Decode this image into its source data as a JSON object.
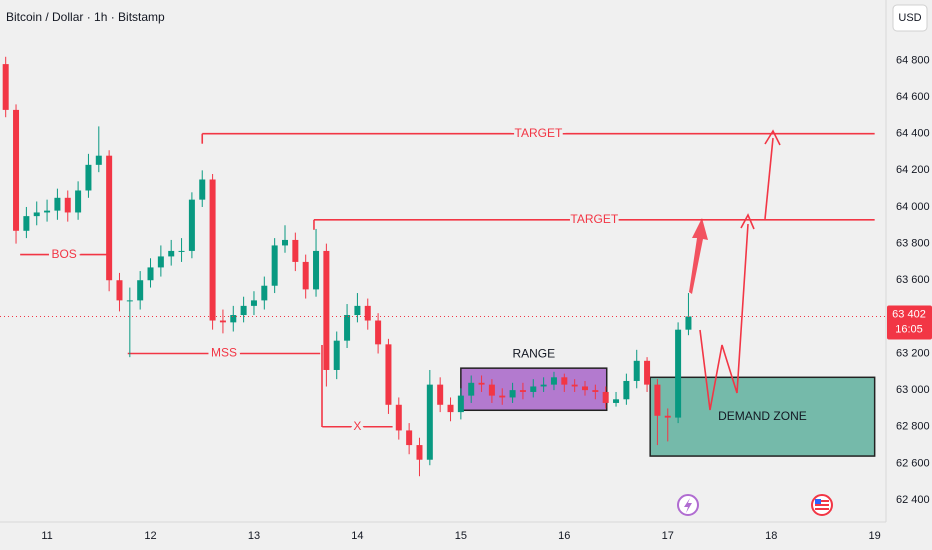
{
  "chart_data": {
    "type": "candlestick",
    "title": "Bitcoin / Dollar · 1h · Bitstamp",
    "currency": "USD",
    "xlim": [
      10.545,
      19.1
    ],
    "ylim": [
      62280,
      65130
    ],
    "grid": false,
    "xticks": [
      11,
      12,
      13,
      14,
      15,
      16,
      17,
      18,
      19
    ],
    "yticks": [
      {
        "value": 62400,
        "label": "62 400"
      },
      {
        "value": 62600,
        "label": "62 600"
      },
      {
        "value": 62800,
        "label": "62 800"
      },
      {
        "value": 63000,
        "label": "63 000"
      },
      {
        "value": 63200,
        "label": "63 200"
      },
      {
        "value": 63400,
        "label": "63 400"
      },
      {
        "value": 63600,
        "label": "63 600"
      },
      {
        "value": 63800,
        "label": "63 800"
      },
      {
        "value": 64000,
        "label": "64 000"
      },
      {
        "value": 64200,
        "label": "64 200"
      },
      {
        "value": 64400,
        "label": "64 400"
      },
      {
        "value": 64600,
        "label": "64 600"
      },
      {
        "value": 64800,
        "label": "64 800"
      }
    ],
    "up_color": "#089981",
    "down_color": "#f23645",
    "x": [
      10.6,
      10.7,
      10.8,
      10.9,
      11.0,
      11.1,
      11.2,
      11.3,
      11.4,
      11.5,
      11.6,
      11.7,
      11.8,
      11.9,
      12.0,
      12.1,
      12.2,
      12.3,
      12.4,
      12.5,
      12.6,
      12.7,
      12.8,
      12.9,
      13.0,
      13.1,
      13.2,
      13.3,
      13.4,
      13.5,
      13.6,
      13.7,
      13.8,
      13.9,
      14.0,
      14.1,
      14.2,
      14.3,
      14.4,
      14.5,
      14.6,
      14.7,
      14.8,
      14.9,
      15.0,
      15.1,
      15.2,
      15.3,
      15.4,
      15.5,
      15.6,
      15.7,
      15.8,
      15.9,
      16.0,
      16.1,
      16.2,
      16.3,
      16.4,
      16.5,
      16.6,
      16.7,
      16.8,
      16.9,
      17.0,
      17.1,
      17.2
    ],
    "open": [
      64780,
      64530,
      63870,
      63950,
      63970,
      63980,
      64050,
      63970,
      64090,
      64230,
      64280,
      63600,
      63490,
      63490,
      63600,
      63670,
      63730,
      63760,
      63760,
      64040,
      64150,
      63380,
      63370,
      63410,
      63460,
      63490,
      63570,
      63790,
      63820,
      63700,
      63550,
      63760,
      63110,
      63270,
      63410,
      63460,
      63380,
      63250,
      62920,
      62780,
      62700,
      62620,
      63030,
      62920,
      62880,
      62970,
      63040,
      63030,
      62970,
      62960,
      63000,
      62990,
      63020,
      63030,
      63070,
      63030,
      63020,
      63000,
      62990,
      62930,
      62950,
      63050,
      63160,
      63030,
      62860,
      62850,
      63330
    ],
    "high": [
      64820,
      64560,
      64000,
      64030,
      64040,
      64100,
      64090,
      64140,
      64290,
      64440,
      64310,
      63640,
      63560,
      63650,
      63720,
      63790,
      63820,
      63830,
      64080,
      64200,
      64180,
      63440,
      63460,
      63510,
      63540,
      63620,
      63830,
      63900,
      63860,
      63740,
      63880,
      63800,
      63320,
      63470,
      63530,
      63500,
      63420,
      63280,
      62960,
      62820,
      62740,
      63110,
      63070,
      62960,
      63010,
      63080,
      63080,
      63060,
      63010,
      63040,
      63040,
      63060,
      63070,
      63100,
      63090,
      63060,
      63050,
      63030,
      63020,
      62990,
      63090,
      63220,
      63180,
      63060,
      62900,
      63370,
      63530
    ],
    "low": [
      64490,
      63800,
      63830,
      63900,
      63920,
      63930,
      63920,
      63930,
      64050,
      64190,
      63540,
      63430,
      63180,
      63440,
      63560,
      63620,
      63680,
      63700,
      63720,
      64000,
      63330,
      63310,
      63320,
      63370,
      63410,
      63440,
      63530,
      63750,
      63650,
      63500,
      63510,
      63020,
      63060,
      63230,
      63370,
      63330,
      63200,
      62870,
      62730,
      62650,
      62530,
      62590,
      62880,
      62830,
      62840,
      62930,
      62990,
      62930,
      62920,
      62930,
      62950,
      62960,
      62990,
      63000,
      62990,
      62990,
      62970,
      62950,
      62900,
      62910,
      62920,
      63010,
      62990,
      62700,
      62720,
      62820,
      63300
    ],
    "close": [
      64530,
      63870,
      63950,
      63970,
      63980,
      64050,
      63970,
      64090,
      64230,
      64280,
      63600,
      63490,
      63490,
      63600,
      63670,
      63730,
      63760,
      63760,
      64040,
      64150,
      63380,
      63370,
      63410,
      63460,
      63490,
      63570,
      63790,
      63820,
      63700,
      63550,
      63760,
      63110,
      63270,
      63410,
      63460,
      63380,
      63250,
      62920,
      62780,
      62700,
      62620,
      63030,
      62920,
      62880,
      62970,
      63040,
      63030,
      62970,
      62960,
      63000,
      62990,
      63020,
      63030,
      63070,
      63030,
      63020,
      63000,
      62990,
      62930,
      62950,
      63050,
      63160,
      63030,
      62860,
      62850,
      63330,
      63402
    ],
    "annotation_color": "#f23645",
    "levels": [
      {
        "text": "TARGET",
        "y": 64400,
        "x": [
          12.5,
          19.0
        ]
      },
      {
        "text": "TARGET",
        "y": 63930,
        "x": [
          13.58,
          19.0
        ]
      },
      {
        "text": "BOS",
        "y": 63740,
        "x": [
          10.74,
          11.59
        ]
      },
      {
        "text": "MSS",
        "y": 63200,
        "x": [
          11.78,
          13.64
        ]
      },
      {
        "text": "X",
        "y": 62800,
        "x": [
          13.66,
          14.34
        ]
      }
    ],
    "boxes": [
      {
        "text": "RANGE",
        "x": [
          15.0,
          16.41
        ],
        "y": [
          62890,
          63120
        ],
        "color": "#a865c9"
      },
      {
        "text": "DEMAND ZONE",
        "x": [
          16.83,
          19.0
        ],
        "y": [
          62640,
          63070
        ],
        "color": "#5fb09e"
      }
    ],
    "current_price": {
      "value": 63402,
      "label": "63 402"
    },
    "countdown": "16:05"
  }
}
